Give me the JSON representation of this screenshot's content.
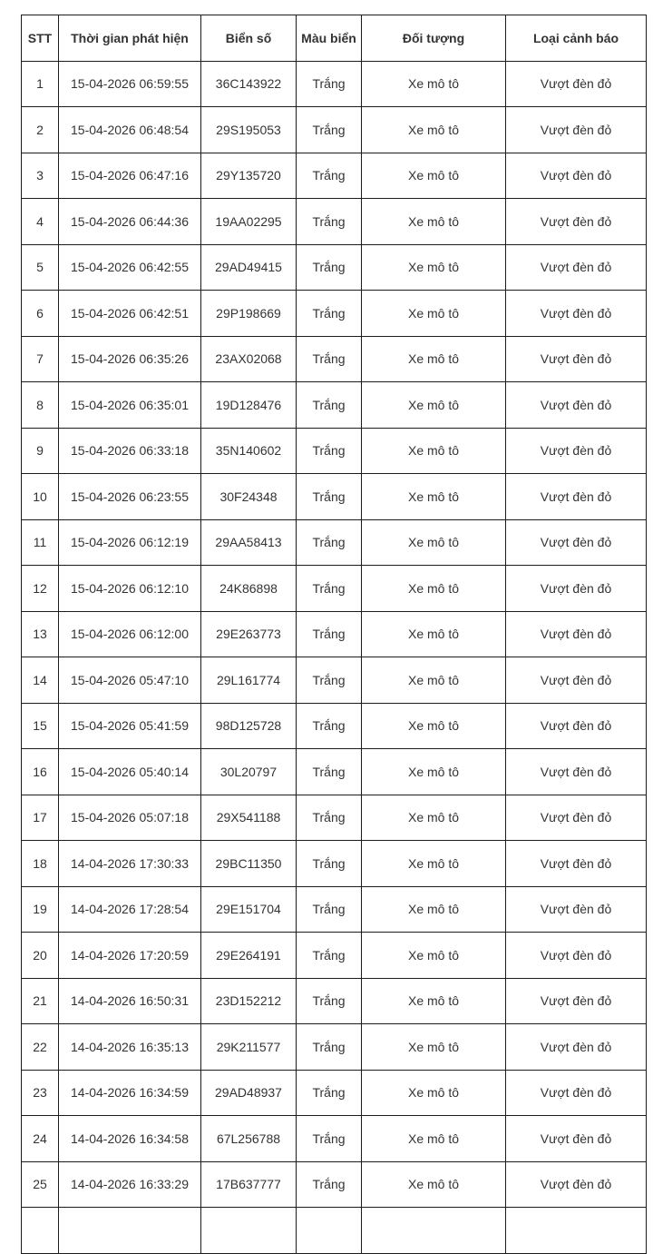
{
  "table": {
    "headers": [
      "STT",
      "Thời gian phát hiện",
      "Biển số",
      "Màu biển",
      "Đối tượng",
      "Loại cảnh báo"
    ],
    "rows": [
      [
        "1",
        "15-04-2026 06:59:55",
        "36C143922",
        "Trắng",
        "Xe mô tô",
        "Vượt đèn đỏ"
      ],
      [
        "2",
        "15-04-2026 06:48:54",
        "29S195053",
        "Trắng",
        "Xe mô tô",
        "Vượt đèn đỏ"
      ],
      [
        "3",
        "15-04-2026 06:47:16",
        "29Y135720",
        "Trắng",
        "Xe mô tô",
        "Vượt đèn đỏ"
      ],
      [
        "4",
        "15-04-2026 06:44:36",
        "19AA02295",
        "Trắng",
        "Xe mô tô",
        "Vượt đèn đỏ"
      ],
      [
        "5",
        "15-04-2026 06:42:55",
        "29AD49415",
        "Trắng",
        "Xe mô tô",
        "Vượt đèn đỏ"
      ],
      [
        "6",
        "15-04-2026 06:42:51",
        "29P198669",
        "Trắng",
        "Xe mô tô",
        "Vượt đèn đỏ"
      ],
      [
        "7",
        "15-04-2026 06:35:26",
        "23AX02068",
        "Trắng",
        "Xe mô tô",
        "Vượt đèn đỏ"
      ],
      [
        "8",
        "15-04-2026 06:35:01",
        "19D128476",
        "Trắng",
        "Xe mô tô",
        "Vượt đèn đỏ"
      ],
      [
        "9",
        "15-04-2026 06:33:18",
        "35N140602",
        "Trắng",
        "Xe mô tô",
        "Vượt đèn đỏ"
      ],
      [
        "10",
        "15-04-2026 06:23:55",
        "30F24348",
        "Trắng",
        "Xe mô tô",
        "Vượt đèn đỏ"
      ],
      [
        "11",
        "15-04-2026 06:12:19",
        "29AA58413",
        "Trắng",
        "Xe mô tô",
        "Vượt đèn đỏ"
      ],
      [
        "12",
        "15-04-2026 06:12:10",
        "24K86898",
        "Trắng",
        "Xe mô tô",
        "Vượt đèn đỏ"
      ],
      [
        "13",
        "15-04-2026 06:12:00",
        "29E263773",
        "Trắng",
        "Xe mô tô",
        "Vượt đèn đỏ"
      ],
      [
        "14",
        "15-04-2026 05:47:10",
        "29L161774",
        "Trắng",
        "Xe mô tô",
        "Vượt đèn đỏ"
      ],
      [
        "15",
        "15-04-2026 05:41:59",
        "98D125728",
        "Trắng",
        "Xe mô tô",
        "Vượt đèn đỏ"
      ],
      [
        "16",
        "15-04-2026 05:40:14",
        "30L20797",
        "Trắng",
        "Xe mô tô",
        "Vượt đèn đỏ"
      ],
      [
        "17",
        "15-04-2026 05:07:18",
        "29X541188",
        "Trắng",
        "Xe mô tô",
        "Vượt đèn đỏ"
      ],
      [
        "18",
        "14-04-2026 17:30:33",
        "29BC11350",
        "Trắng",
        "Xe mô tô",
        "Vượt đèn đỏ"
      ],
      [
        "19",
        "14-04-2026 17:28:54",
        "29E151704",
        "Trắng",
        "Xe mô tô",
        "Vượt đèn đỏ"
      ],
      [
        "20",
        "14-04-2026 17:20:59",
        "29E264191",
        "Trắng",
        "Xe mô tô",
        "Vượt đèn đỏ"
      ],
      [
        "21",
        "14-04-2026 16:50:31",
        "23D152212",
        "Trắng",
        "Xe mô tô",
        "Vượt đèn đỏ"
      ],
      [
        "22",
        "14-04-2026 16:35:13",
        "29K211577",
        "Trắng",
        "Xe mô tô",
        "Vượt đèn đỏ"
      ],
      [
        "23",
        "14-04-2026 16:34:59",
        "29AD48937",
        "Trắng",
        "Xe mô tô",
        "Vượt đèn đỏ"
      ],
      [
        "24",
        "14-04-2026 16:34:58",
        "67L256788",
        "Trắng",
        "Xe mô tô",
        "Vượt đèn đỏ"
      ],
      [
        "25",
        "14-04-2026 16:33:29",
        "17B637777",
        "Trắng",
        "Xe mô tô",
        "Vượt đèn đỏ"
      ]
    ]
  }
}
